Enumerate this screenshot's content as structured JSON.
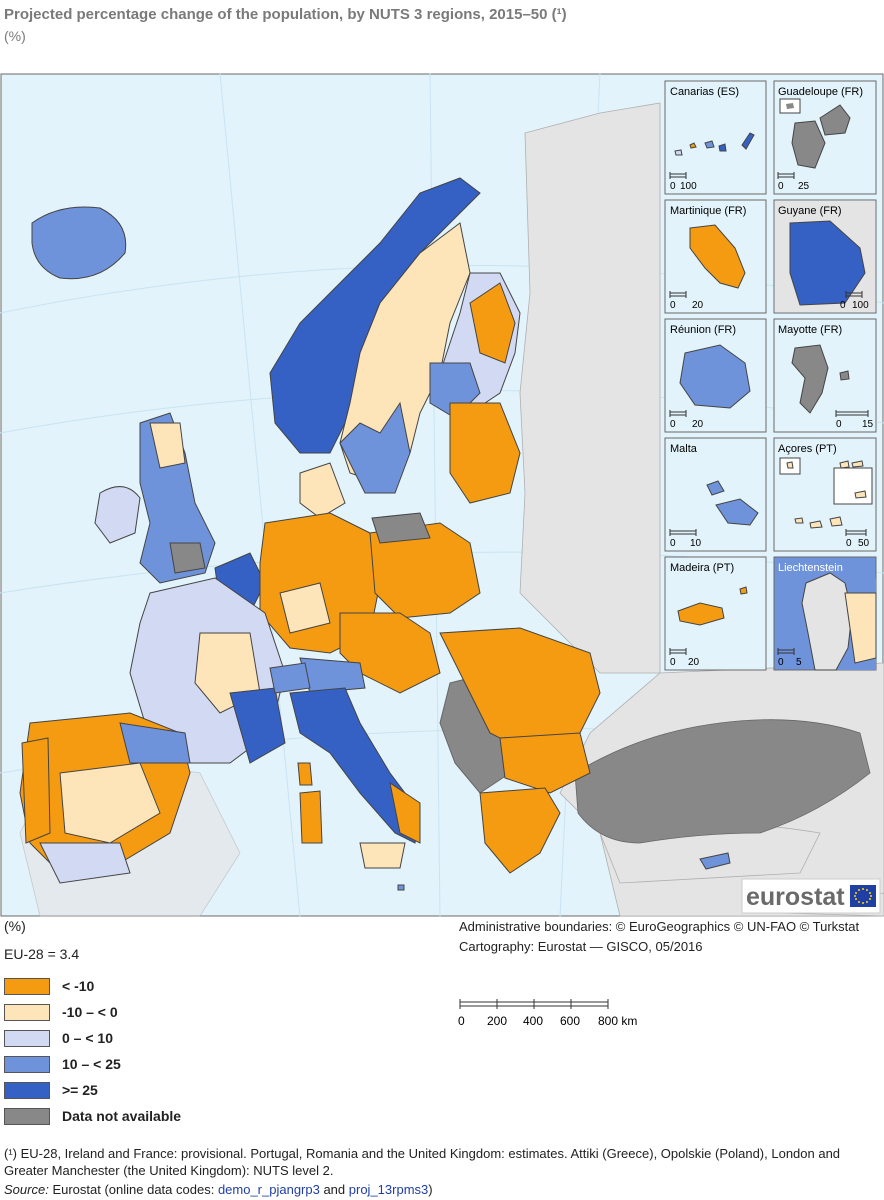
{
  "title": "Projected percentage change of the population, by NUTS 3 regions, 2015–50 (¹)",
  "subtitle": "(%)",
  "insets": [
    {
      "name": "Canarias (ES)",
      "scale_left": "0",
      "scale_right": "100"
    },
    {
      "name": "Guadeloupe (FR)",
      "scale_left": "0",
      "scale_right": "25"
    },
    {
      "name": "Martinique (FR)",
      "scale_left": "0",
      "scale_right": "20"
    },
    {
      "name": "Guyane (FR)",
      "scale_left": "0",
      "scale_right": "100"
    },
    {
      "name": "Réunion (FR)",
      "scale_left": "0",
      "scale_right": "20"
    },
    {
      "name": "Mayotte (FR)",
      "scale_left": "0",
      "scale_right": "15"
    },
    {
      "name": "Malta",
      "scale_left": "0",
      "scale_right": "10"
    },
    {
      "name": "Açores (PT)",
      "scale_left": "0",
      "scale_right": "50"
    },
    {
      "name": "Madeira (PT)",
      "scale_left": "0",
      "scale_right": "20"
    },
    {
      "name": "Liechtenstein",
      "scale_left": "0",
      "scale_right": "5"
    }
  ],
  "logo_text": "eurostat",
  "legend": {
    "heading": "(%)",
    "eu_value": "EU-28 = 3.4",
    "classes": [
      {
        "label": "< -10",
        "color": "#f59b11"
      },
      {
        "label": "-10 – < 0",
        "color": "#fde5b9"
      },
      {
        "label": "0 – < 10",
        "color": "#d2d9f2"
      },
      {
        "label": "10 – < 25",
        "color": "#6f93db"
      },
      {
        "label": ">= 25",
        "color": "#3560c4"
      },
      {
        "label": "Data not available",
        "color": "#888888"
      }
    ]
  },
  "credits": {
    "boundaries": "Administrative boundaries: © EuroGeographics © UN-FAO © Turkstat",
    "cartography": "Cartography: Eurostat — GISCO, 05/2016"
  },
  "scale": {
    "ticks": [
      "0",
      "200",
      "400",
      "600",
      "800 km"
    ]
  },
  "footnote": "(¹) EU-28, Ireland and France: provisional. Portugal, Romania and the United Kingdom: estimates. Attiki (Greece), Opolskie (Poland), London and Greater Manchester (the United Kingdom): NUTS level 2.",
  "source": {
    "label": "Source:",
    "text": "Eurostat (online data codes: ",
    "code1": "demo_r_pjangrp3",
    "and": " and ",
    "code2": "proj_13rpms3",
    "close": ")"
  },
  "colors": {
    "sea": "#e2f3fb",
    "non_eu": "#e4e4e4",
    "frame": "#6a6a6a"
  }
}
